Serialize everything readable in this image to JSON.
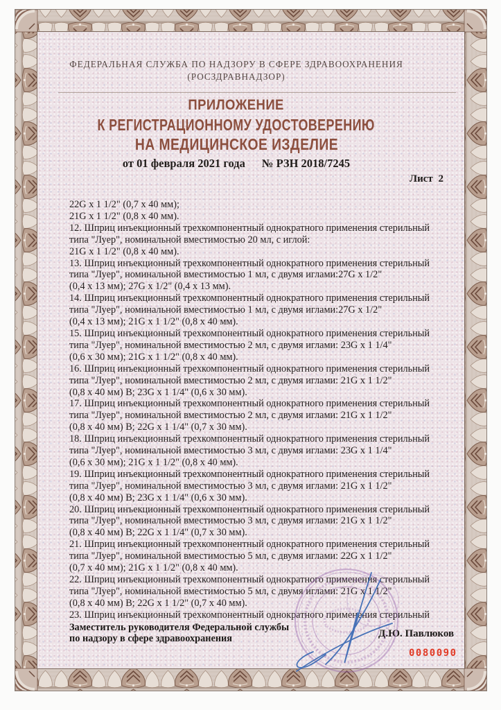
{
  "doc": {
    "agency_line1": "ФЕДЕРАЛЬНАЯ СЛУЖБА ПО НАДЗОРУ В СФЕРЕ ЗДРАВООХРАНЕНИЯ",
    "agency_line2": "(РОСЗДРАВНАДЗОР)",
    "title_line1": "ПРИЛОЖЕНИЕ",
    "title_line2": "К РЕГИСТРАЦИОННОМУ УДОСТОВЕРЕНИЮ",
    "title_line3": "НА МЕДИЦИНСКОЕ ИЗДЕЛИЕ",
    "date_text": "от  01 февраля 2021 года",
    "number_text": "№  РЗН 2018/7245",
    "sheet_label": "Лист 2",
    "serial_number": "0080090"
  },
  "body": {
    "lines": [
      "22G x 1 1/2\" (0,7 x 40 мм);",
      "21G x 1 1/2\" (0,8 x 40 мм).",
      "12. Шприц инъекционный трехкомпонентный однократного применения стерильный",
      "типа \"Луер\", номинальной вместимостью 20 мл, с иглой:",
      "21G x 1 1/2\" (0,8 x 40 мм).",
      "13. Шприц инъекционный трехкомпонентный однократного применения стерильный",
      "типа \"Луер\", номинальной вместимостью 1 мл, с двумя иглами:27G x 1/2\"",
      "(0,4 x 13 мм); 27G x 1/2\" (0,4 x 13 мм).",
      "14. Шприц инъекционный трехкомпонентный однократного применения стерильный",
      "типа \"Луер\", номинальной вместимостью 1 мл, с двумя иглами:27G x 1/2\"",
      "(0,4 x 13 мм); 21G x 1 1/2\" (0,8 x 40 мм).",
      "15. Шприц инъекционный трехкомпонентный однократного применения стерильный",
      "типа \"Луер\", номинальной вместимостью 2 мл, с двумя иглами: 23G x 1 1/4\"",
      "(0,6 x 30 мм); 21G x 1 1/2\" (0,8 x 40 мм).",
      "16. Шприц инъекционный трехкомпонентный однократного применения стерильный",
      "типа \"Луер\", номинальной вместимостью 2 мл, с двумя иглами: 21G x 1 1/2\"",
      "(0,8 x 40 мм) В; 23G x 1 1/4\" (0,6 x 30 мм).",
      "17. Шприц инъекционный трехкомпонентный однократного применения стерильный",
      "типа \"Луер\", номинальной вместимостью 2 мл, с двумя иглами: 21G x 1 1/2\"",
      "(0,8 x 40 мм) В; 22G x 1 1/4\" (0,7 x 30 мм).",
      "18. Шприц инъекционный трехкомпонентный однократного применения стерильный",
      "типа \"Луер\", номинальной вместимостью 3 мл, с двумя иглами: 23G x 1 1/4\"",
      "(0,6 x 30 мм); 21G x 1 1/2\" (0,8 x 40 мм).",
      "19. Шприц инъекционный трехкомпонентный однократного применения стерильный",
      "типа \"Луер\", номинальной вместимостью 3 мл, с двумя иглами: 21G x 1 1/2\"",
      "(0,8 x 40 мм) В; 23G x 1 1/4\" (0,6 x 30 мм).",
      "20. Шприц инъекционный трехкомпонентный однократного применения стерильный",
      "типа \"Луер\", номинальной вместимостью 3 мл, с двумя иглами: 21G x 1 1/2\"",
      "(0,8 x 40 мм) В; 22G x 1 1/4\" (0,7 x 30 мм).",
      "21. Шприц инъекционный трехкомпонентный однократного применения стерильный",
      "типа \"Луер\", номинальной вместимостью 5 мл, с двумя иглами: 22G x 1 1/2\"",
      "(0,7 x 40 мм); 21G x 1 1/2\" (0,8 x 40 мм).",
      "22. Шприц инъекционный трехкомпонентный однократного применения стерильный",
      "типа \"Луер\", номинальной вместимостью 5 мл, с двумя иглами: 21G x 1 1/2\"",
      "(0,8 x 40 мм) В; 22G x 1 1/2\" (0,7 x 40 мм).",
      "23. Шприц инъекционный трехкомпонентный однократного применения стерильный"
    ]
  },
  "signature_block": {
    "position_line1": "Заместитель руководителя Федеральной службы",
    "position_line2": "по надзору в сфере здравоохранения",
    "signer_name": "Д.Ю. Павлюков"
  },
  "colors": {
    "title_accent": "#8c4f3e",
    "serial_red": "#e13a26",
    "stamp_purple": "#8e56a8",
    "signature_blue": "#3f6cb5",
    "border_brown": "#8a685a",
    "paper_tint": "#ede3e7"
  }
}
